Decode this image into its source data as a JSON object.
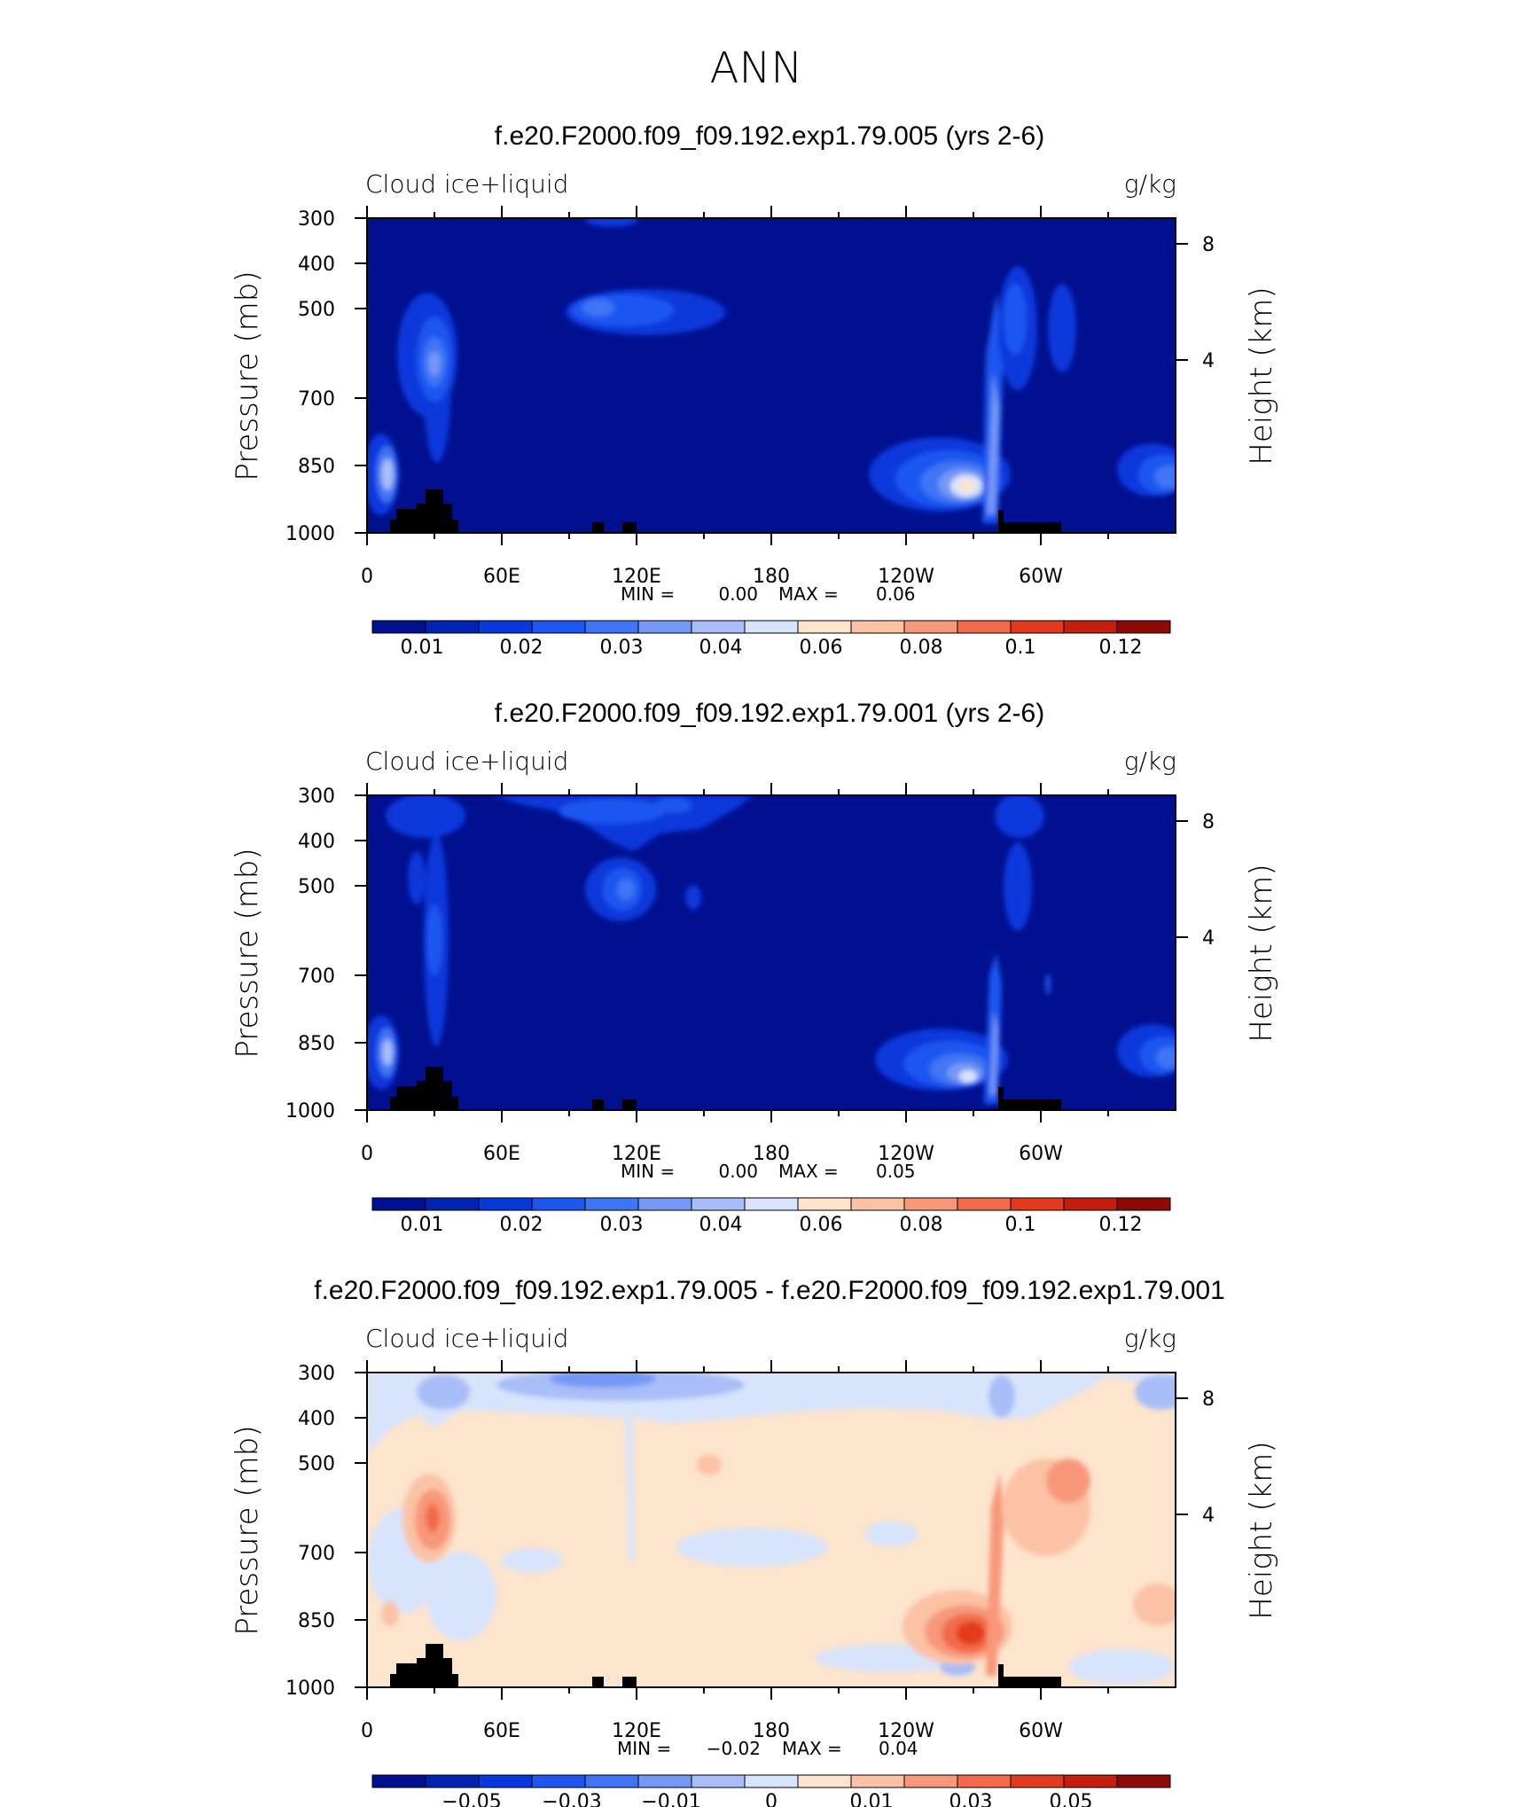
{
  "page_title": "ANN",
  "colors": {
    "deep_blue": "#00108f",
    "palette": [
      "#00108f",
      "#0024b4",
      "#0838dc",
      "#1e56f0",
      "#3f74f4",
      "#7597f5",
      "#a9bdf8",
      "#d8e4fb",
      "#fde4cd",
      "#fbc2a5",
      "#f8977a",
      "#f26a4a",
      "#e33a1f",
      "#c41e0e",
      "#8e0a07"
    ],
    "terrain": "#000000"
  },
  "chart_data": [
    {
      "type": "heatmap",
      "title": "f.e20.F2000.f09_f09.192.exp1.79.005 (yrs 2-6)",
      "left_label": "Cloud ice+liquid",
      "right_label": "g/kg",
      "ylabel": "Pressure (mb)",
      "ylabel_right": "Height (km)",
      "x_ticks": [
        "0",
        "60E",
        "120E",
        "180",
        "120W",
        "60W"
      ],
      "y_ticks": [
        "300",
        "400",
        "500",
        "700",
        "850",
        "1000"
      ],
      "y_right_ticks": [
        "8",
        "4"
      ],
      "stats": {
        "min_label": "MIN =",
        "min": "0.00",
        "max_label": "MAX =",
        "max": "0.06"
      },
      "colorbar_labels": [
        "0.01",
        "0.02",
        "0.03",
        "0.04",
        "0.06",
        "0.08",
        "0.1",
        "0.12"
      ],
      "field_max": 0.06
    },
    {
      "type": "heatmap",
      "title": "f.e20.F2000.f09_f09.192.exp1.79.001 (yrs 2-6)",
      "left_label": "Cloud ice+liquid",
      "right_label": "g/kg",
      "ylabel": "Pressure (mb)",
      "ylabel_right": "Height (km)",
      "x_ticks": [
        "0",
        "60E",
        "120E",
        "180",
        "120W",
        "60W"
      ],
      "y_ticks": [
        "300",
        "400",
        "500",
        "700",
        "850",
        "1000"
      ],
      "y_right_ticks": [
        "8",
        "4"
      ],
      "stats": {
        "min_label": "MIN =",
        "min": "0.00",
        "max_label": "MAX =",
        "max": "0.05"
      },
      "colorbar_labels": [
        "0.01",
        "0.02",
        "0.03",
        "0.04",
        "0.06",
        "0.08",
        "0.1",
        "0.12"
      ],
      "field_max": 0.05
    },
    {
      "type": "heatmap",
      "title": "f.e20.F2000.f09_f09.192.exp1.79.005 - f.e20.F2000.f09_f09.192.exp1.79.001",
      "left_label": "Cloud ice+liquid",
      "right_label": "g/kg",
      "ylabel": "Pressure (mb)",
      "ylabel_right": "Height (km)",
      "x_ticks": [
        "0",
        "60E",
        "120E",
        "180",
        "120W",
        "60W"
      ],
      "y_ticks": [
        "300",
        "400",
        "500",
        "700",
        "850",
        "1000"
      ],
      "y_right_ticks": [
        "8",
        "4"
      ],
      "stats": {
        "min_label": "MIN =",
        "min": "−0.02",
        "max_label": "MAX =",
        "max": "0.04"
      },
      "colorbar_labels": [
        "−0.05",
        "−0.03",
        "−0.01",
        "0",
        "0.01",
        "0.03",
        "0.05"
      ],
      "field_max": 0.04,
      "field_min": -0.02
    }
  ]
}
